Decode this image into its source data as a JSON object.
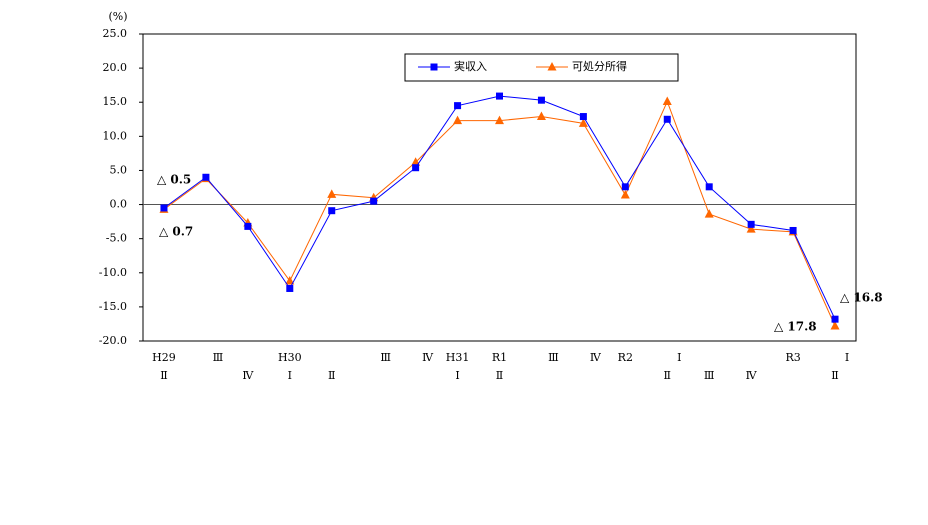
{
  "chart_data": {
    "type": "line",
    "unit_label": "(%)",
    "categories": [
      "H29",
      "Ⅲ",
      null,
      "H30",
      null,
      "Ⅲ",
      "Ⅳ",
      "H31",
      "R1",
      "Ⅲ",
      "Ⅳ",
      "R2",
      "Ⅰ",
      null,
      null,
      "R3",
      "Ⅰ"
    ],
    "category_sublabels": [
      "Ⅱ",
      null,
      "Ⅳ",
      "Ⅰ",
      "Ⅱ",
      null,
      null,
      "Ⅰ",
      "Ⅱ",
      null,
      null,
      null,
      "Ⅱ",
      "Ⅲ",
      "Ⅳ",
      null,
      "Ⅱ"
    ],
    "series": [
      {
        "name": "実収入",
        "color": "#0000ff",
        "marker": "square",
        "values": [
          -0.5,
          4.0,
          -3.2,
          -12.3,
          -0.9,
          0.5,
          5.4,
          14.5,
          15.9,
          15.3,
          12.9,
          2.6,
          12.5,
          2.6,
          -2.9,
          -3.8,
          -16.8
        ]
      },
      {
        "name": "可処分所得",
        "color": "#ff6600",
        "marker": "triangle",
        "values": [
          -0.7,
          3.8,
          -2.7,
          -11.2,
          1.5,
          1.0,
          6.2,
          12.3,
          12.3,
          12.9,
          11.9,
          1.4,
          15.1,
          -1.4,
          -3.6,
          -4.0,
          -17.8
        ]
      }
    ],
    "ylim": [
      -20,
      25
    ],
    "yticks": [
      {
        "value": -20,
        "label": "-20.0"
      },
      {
        "value": -15,
        "label": "-15.0"
      },
      {
        "value": -10,
        "label": "-10.0"
      },
      {
        "value": -5,
        "label": "-5.0"
      },
      {
        "value": 0,
        "label": "0.0"
      },
      {
        "value": 5,
        "label": "5.0"
      },
      {
        "value": 10,
        "label": "10.0"
      },
      {
        "value": 15,
        "label": "15.0"
      },
      {
        "value": 20,
        "label": "20.0"
      },
      {
        "value": 25,
        "label": "25.0"
      }
    ],
    "annotations": [
      {
        "text": "△ 0.5",
        "color": "#002060"
      },
      {
        "text": "△ 0.7",
        "color": "#e6b800"
      },
      {
        "text": "△ 16.8",
        "color": "#002060"
      },
      {
        "text": "△ 17.8",
        "color": "#e6b800"
      }
    ]
  }
}
